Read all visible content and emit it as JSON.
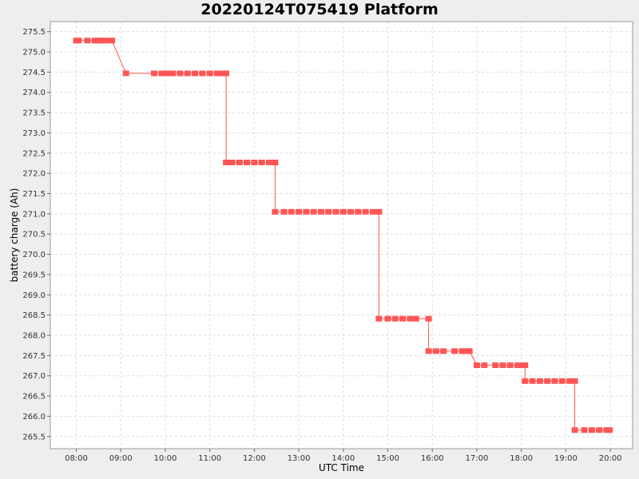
{
  "chart_data": {
    "type": "line",
    "title": "20220124T075419 Platform",
    "xlabel": "UTC Time",
    "ylabel": "battery charge (Ah)",
    "xlim": [
      "07:25",
      "20:30"
    ],
    "ylim": [
      265.2,
      275.75
    ],
    "xticks": [
      "08:00",
      "09:00",
      "10:00",
      "11:00",
      "12:00",
      "13:00",
      "14:00",
      "15:00",
      "16:00",
      "17:00",
      "18:00",
      "19:00",
      "20:00"
    ],
    "yticks": [
      "265.5",
      "266.0",
      "266.5",
      "267.0",
      "267.5",
      "268.0",
      "268.5",
      "269.0",
      "269.5",
      "270.0",
      "270.5",
      "271.0",
      "271.5",
      "272.0",
      "272.5",
      "273.0",
      "273.5",
      "274.0",
      "274.5",
      "275.0",
      "275.5"
    ],
    "grid": true,
    "series_color": "#ff5555",
    "series": [
      {
        "x": [
          "08:00",
          "08:03",
          "08:15",
          "08:25",
          "08:28",
          "08:31",
          "08:34",
          "08:37",
          "08:40",
          "08:48",
          "09:07",
          "09:45",
          "09:55",
          "10:02",
          "10:10",
          "10:20",
          "10:30",
          "10:40",
          "10:50",
          "11:00",
          "11:10",
          "11:18",
          "11:22",
          "11:22",
          "11:30",
          "11:40",
          "11:50",
          "12:00",
          "12:10",
          "12:20",
          "12:28",
          "12:28",
          "12:40",
          "12:50",
          "13:00",
          "13:10",
          "13:20",
          "13:30",
          "13:40",
          "13:50",
          "14:00",
          "14:10",
          "14:20",
          "14:30",
          "14:40",
          "14:48",
          "14:48",
          "15:00",
          "15:10",
          "15:20",
          "15:30",
          "15:38",
          "15:55",
          "15:55",
          "16:05",
          "16:15",
          "16:30",
          "16:40",
          "16:45",
          "16:50",
          "17:00",
          "17:10",
          "17:25",
          "17:35",
          "17:45",
          "17:55",
          "18:00",
          "18:05",
          "18:05",
          "18:15",
          "18:25",
          "18:35",
          "18:45",
          "18:55",
          "19:05",
          "19:12",
          "19:12",
          "19:25",
          "19:35",
          "19:45",
          "19:55",
          "19:59"
        ],
        "y": [
          275.28,
          275.28,
          275.28,
          275.28,
          275.28,
          275.28,
          275.28,
          275.28,
          275.28,
          275.28,
          274.47,
          274.47,
          274.47,
          274.47,
          274.47,
          274.47,
          274.47,
          274.47,
          274.47,
          274.47,
          274.47,
          274.47,
          274.47,
          272.27,
          272.27,
          272.27,
          272.27,
          272.27,
          272.27,
          272.27,
          272.27,
          271.05,
          271.05,
          271.05,
          271.05,
          271.05,
          271.05,
          271.05,
          271.05,
          271.05,
          271.05,
          271.05,
          271.05,
          271.05,
          271.05,
          271.05,
          268.41,
          268.41,
          268.41,
          268.41,
          268.41,
          268.41,
          268.41,
          267.61,
          267.61,
          267.61,
          267.61,
          267.61,
          267.61,
          267.61,
          267.26,
          267.26,
          267.26,
          267.26,
          267.26,
          267.26,
          267.26,
          267.26,
          266.87,
          266.87,
          266.87,
          266.87,
          266.87,
          266.87,
          266.87,
          266.87,
          265.66,
          265.66,
          265.66,
          265.66,
          265.66,
          265.66
        ]
      }
    ]
  }
}
